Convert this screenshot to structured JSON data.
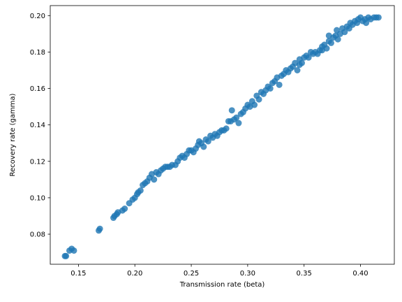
{
  "chart_data": {
    "type": "scatter",
    "title": "",
    "xlabel": "Transmission rate (beta)",
    "ylabel": "Recovery rate (gamma)",
    "xlim": [
      0.125,
      0.43
    ],
    "ylim": [
      0.0635,
      0.2055
    ],
    "xticks": [
      0.15,
      0.2,
      0.25,
      0.3,
      0.35,
      0.4
    ],
    "xtick_labels": [
      "0.15",
      "0.20",
      "0.25",
      "0.30",
      "0.35",
      "0.40"
    ],
    "yticks": [
      0.08,
      0.1,
      0.12,
      0.14,
      0.16,
      0.18,
      0.2
    ],
    "ytick_labels": [
      "0.08",
      "0.10",
      "0.12",
      "0.14",
      "0.16",
      "0.18",
      "0.20"
    ],
    "grid": false,
    "legend": false,
    "marker_color": "#1f77b4",
    "marker_alpha": 0.8,
    "series": [
      {
        "points": [
          [
            0.138,
            0.068
          ],
          [
            0.139,
            0.068
          ],
          [
            0.142,
            0.071
          ],
          [
            0.144,
            0.072
          ],
          [
            0.146,
            0.071
          ],
          [
            0.168,
            0.082
          ],
          [
            0.169,
            0.083
          ],
          [
            0.181,
            0.089
          ],
          [
            0.182,
            0.09
          ],
          [
            0.184,
            0.091
          ],
          [
            0.185,
            0.092
          ],
          [
            0.189,
            0.093
          ],
          [
            0.191,
            0.094
          ],
          [
            0.195,
            0.097
          ],
          [
            0.198,
            0.099
          ],
          [
            0.2,
            0.1
          ],
          [
            0.202,
            0.102
          ],
          [
            0.203,
            0.103
          ],
          [
            0.205,
            0.104
          ],
          [
            0.207,
            0.107
          ],
          [
            0.209,
            0.108
          ],
          [
            0.211,
            0.109
          ],
          [
            0.213,
            0.111
          ],
          [
            0.215,
            0.113
          ],
          [
            0.217,
            0.11
          ],
          [
            0.219,
            0.114
          ],
          [
            0.221,
            0.113
          ],
          [
            0.223,
            0.115
          ],
          [
            0.225,
            0.116
          ],
          [
            0.227,
            0.117
          ],
          [
            0.229,
            0.117
          ],
          [
            0.231,
            0.117
          ],
          [
            0.233,
            0.118
          ],
          [
            0.236,
            0.118
          ],
          [
            0.238,
            0.12
          ],
          [
            0.24,
            0.122
          ],
          [
            0.242,
            0.123
          ],
          [
            0.244,
            0.122
          ],
          [
            0.246,
            0.124
          ],
          [
            0.248,
            0.126
          ],
          [
            0.25,
            0.126
          ],
          [
            0.252,
            0.125
          ],
          [
            0.254,
            0.127
          ],
          [
            0.256,
            0.129
          ],
          [
            0.257,
            0.131
          ],
          [
            0.259,
            0.13
          ],
          [
            0.261,
            0.128
          ],
          [
            0.263,
            0.132
          ],
          [
            0.265,
            0.131
          ],
          [
            0.267,
            0.134
          ],
          [
            0.269,
            0.133
          ],
          [
            0.271,
            0.135
          ],
          [
            0.273,
            0.134
          ],
          [
            0.275,
            0.136
          ],
          [
            0.277,
            0.137
          ],
          [
            0.279,
            0.137
          ],
          [
            0.281,
            0.138
          ],
          [
            0.283,
            0.142
          ],
          [
            0.285,
            0.142
          ],
          [
            0.286,
            0.148
          ],
          [
            0.288,
            0.143
          ],
          [
            0.29,
            0.144
          ],
          [
            0.292,
            0.141
          ],
          [
            0.294,
            0.146
          ],
          [
            0.296,
            0.147
          ],
          [
            0.298,
            0.149
          ],
          [
            0.3,
            0.151
          ],
          [
            0.302,
            0.15
          ],
          [
            0.304,
            0.153
          ],
          [
            0.306,
            0.151
          ],
          [
            0.308,
            0.156
          ],
          [
            0.31,
            0.154
          ],
          [
            0.312,
            0.158
          ],
          [
            0.314,
            0.157
          ],
          [
            0.316,
            0.159
          ],
          [
            0.318,
            0.161
          ],
          [
            0.32,
            0.16
          ],
          [
            0.322,
            0.163
          ],
          [
            0.324,
            0.164
          ],
          [
            0.326,
            0.166
          ],
          [
            0.328,
            0.162
          ],
          [
            0.33,
            0.167
          ],
          [
            0.332,
            0.168
          ],
          [
            0.334,
            0.17
          ],
          [
            0.336,
            0.169
          ],
          [
            0.338,
            0.171
          ],
          [
            0.34,
            0.172
          ],
          [
            0.342,
            0.174
          ],
          [
            0.344,
            0.17
          ],
          [
            0.346,
            0.176
          ],
          [
            0.348,
            0.174
          ],
          [
            0.35,
            0.177
          ],
          [
            0.352,
            0.178
          ],
          [
            0.354,
            0.177
          ],
          [
            0.356,
            0.18
          ],
          [
            0.358,
            0.179
          ],
          [
            0.36,
            0.18
          ],
          [
            0.362,
            0.179
          ],
          [
            0.364,
            0.181
          ],
          [
            0.366,
            0.183
          ],
          [
            0.368,
            0.184
          ],
          [
            0.37,
            0.182
          ],
          [
            0.372,
            0.186
          ],
          [
            0.374,
            0.185
          ],
          [
            0.376,
            0.188
          ],
          [
            0.378,
            0.189
          ],
          [
            0.379,
            0.192
          ],
          [
            0.38,
            0.187
          ],
          [
            0.382,
            0.19
          ],
          [
            0.384,
            0.193
          ],
          [
            0.386,
            0.191
          ],
          [
            0.388,
            0.194
          ],
          [
            0.39,
            0.193
          ],
          [
            0.391,
            0.196
          ],
          [
            0.393,
            0.195
          ],
          [
            0.395,
            0.197
          ],
          [
            0.397,
            0.196
          ],
          [
            0.398,
            0.198
          ],
          [
            0.4,
            0.199
          ],
          [
            0.402,
            0.197
          ],
          [
            0.404,
            0.198
          ],
          [
            0.405,
            0.196
          ],
          [
            0.407,
            0.199
          ],
          [
            0.409,
            0.198
          ],
          [
            0.412,
            0.199
          ],
          [
            0.414,
            0.199
          ],
          [
            0.416,
            0.199
          ],
          [
            0.372,
            0.189
          ],
          [
            0.366,
            0.181
          ],
          [
            0.346,
            0.173
          ]
        ]
      }
    ]
  }
}
